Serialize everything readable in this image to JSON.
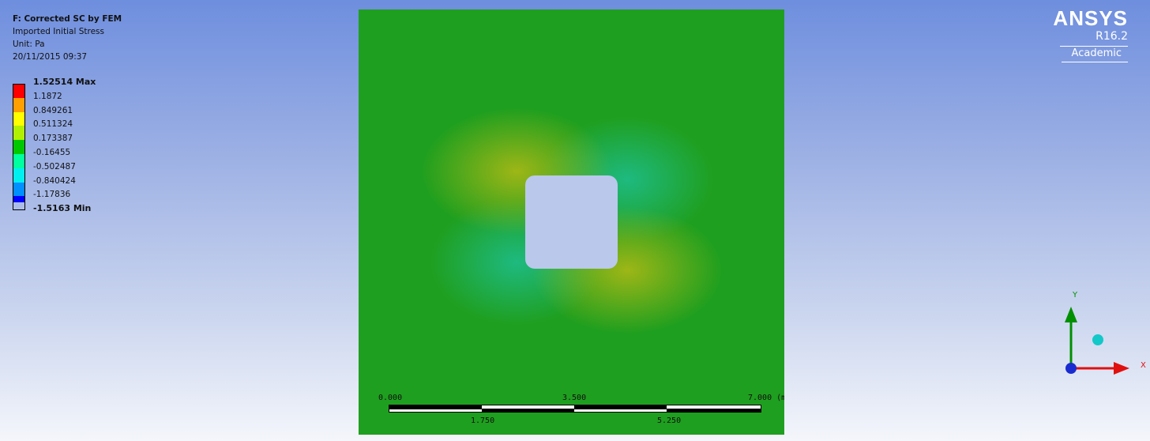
{
  "header": {
    "title": "F: Corrected SC by FEM",
    "result_type": "Imported Initial Stress",
    "unit": "Unit: Pa",
    "timestamp": "20/11/2015 09:37"
  },
  "legend": {
    "max_label": "1.52514 Max",
    "min_label": "-1.5163 Min",
    "values": [
      "1.1872",
      "0.849261",
      "0.511324",
      "0.173387",
      "-0.16455",
      "-0.502487",
      "-0.840424",
      "-1.17836"
    ],
    "colors": [
      "#ff0000",
      "#ff9f00",
      "#ffff00",
      "#b0f000",
      "#00c800",
      "#00ff9f",
      "#00f0f0",
      "#0090ff",
      "#0000ff"
    ]
  },
  "scale_bar": {
    "top_labels": [
      "0.000",
      "3.500",
      "7.000 (m)"
    ],
    "bottom_labels": [
      "1.750",
      "5.250"
    ]
  },
  "brand": {
    "name": "ANSYS",
    "version": "R16.2",
    "edition": "Academic"
  },
  "triad": {
    "y_label": "Y",
    "x_label": "X",
    "x_color": "#e01010",
    "y_color": "#009000",
    "z_color": "#1a2cd0",
    "iso_color": "#12c8c8"
  }
}
